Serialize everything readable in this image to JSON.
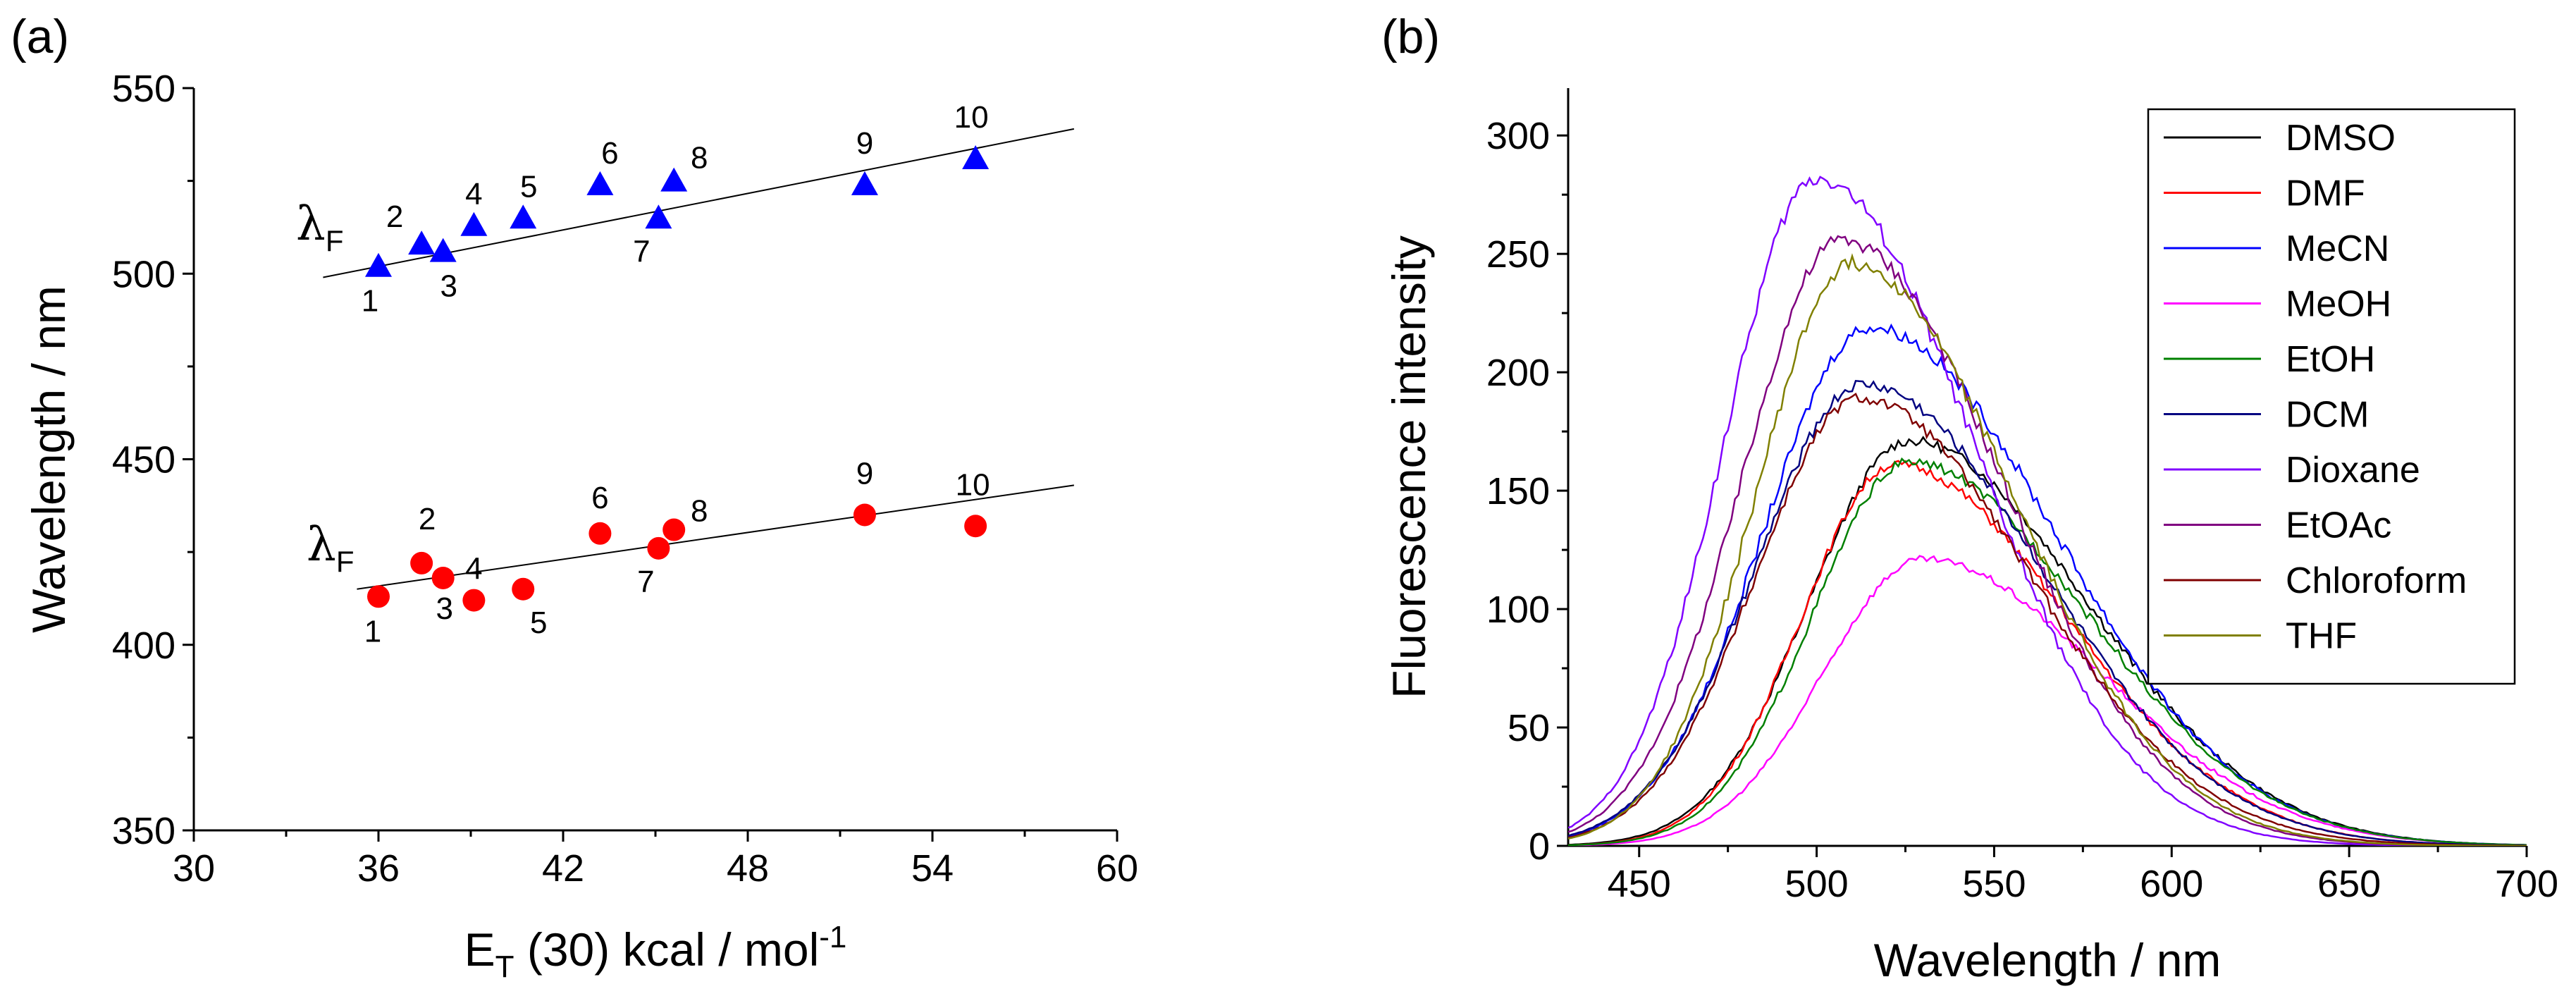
{
  "chart_data": [
    {
      "panel": "(a)",
      "type": "scatter",
      "xlabel": "E",
      "xlabel_sub": "T",
      "xlabel_rest": " (30) kcal / mol",
      "xlabel_sup": "-1",
      "ylabel": "Wavelength / nm",
      "xlim": [
        30,
        60
      ],
      "ylim": [
        350,
        550
      ],
      "xticks": [
        "30",
        "36",
        "42",
        "48",
        "54",
        "60"
      ],
      "yticks": [
        "350",
        "400",
        "450",
        "500",
        "550"
      ],
      "series": [
        {
          "name": "λF (triangles)",
          "label": "λ",
          "label_sub": "F",
          "marker": "triangle",
          "color": "#0000ff",
          "x": [
            36.0,
            37.4,
            38.1,
            39.1,
            40.7,
            43.2,
            45.1,
            45.6,
            51.8,
            55.4
          ],
          "y": [
            502,
            508,
            506,
            513,
            515,
            524,
            515,
            525,
            524,
            531
          ],
          "point_labels": [
            "1",
            "2",
            "3",
            "4",
            "5",
            "6",
            "7",
            "8",
            "9",
            "10"
          ],
          "fit": {
            "x": [
              34.2,
              58.6
            ],
            "y": [
              499,
              539
            ]
          }
        },
        {
          "name": "λF (circles)",
          "label": "λ",
          "label_sub": "F",
          "marker": "circle",
          "color": "#ff0000",
          "x": [
            36.0,
            37.4,
            38.1,
            39.1,
            40.7,
            43.2,
            45.1,
            45.6,
            51.8,
            55.4
          ],
          "y": [
            413,
            422,
            418,
            412,
            415,
            430,
            426,
            431,
            435,
            432
          ],
          "point_labels": [
            "1",
            "2",
            "3",
            "4",
            "5",
            "6",
            "7",
            "8",
            "9",
            "10"
          ],
          "fit": {
            "x": [
              35.3,
              58.6
            ],
            "y": [
              415,
              443
            ]
          }
        }
      ]
    },
    {
      "panel": "(b)",
      "type": "line",
      "xlabel": "Wavelength / nm",
      "ylabel": "Fluorescence intensity",
      "xlim": [
        430,
        700
      ],
      "ylim": [
        0,
        320
      ],
      "xticks": [
        "450",
        "500",
        "550",
        "600",
        "650",
        "700"
      ],
      "yticks": [
        "0",
        "50",
        "100",
        "150",
        "200",
        "250",
        "300"
      ],
      "legend_position": "top-right",
      "series": [
        {
          "name": "DMSO",
          "color": "#000000",
          "peak_x": 526,
          "peak_y": 171,
          "sigma_left": 28,
          "sigma_right": 50
        },
        {
          "name": "DMF",
          "color": "#ff0000",
          "peak_x": 522,
          "peak_y": 161,
          "sigma_left": 26,
          "sigma_right": 48
        },
        {
          "name": "MeCN",
          "color": "#0000ff",
          "peak_x": 515,
          "peak_y": 219,
          "sigma_left": 30,
          "sigma_right": 52
        },
        {
          "name": "MeOH",
          "color": "#ff00ff",
          "peak_x": 530,
          "peak_y": 121,
          "sigma_left": 28,
          "sigma_right": 50
        },
        {
          "name": "EtOH",
          "color": "#008000",
          "peak_x": 526,
          "peak_y": 162,
          "sigma_left": 27,
          "sigma_right": 50
        },
        {
          "name": "DCM",
          "color": "#000080",
          "peak_x": 513,
          "peak_y": 195,
          "sigma_left": 30,
          "sigma_right": 50
        },
        {
          "name": "Dioxane",
          "color": "#8000ff",
          "peak_x": 500,
          "peak_y": 282,
          "sigma_left": 26,
          "sigma_right": 44
        },
        {
          "name": "EtOAc",
          "color": "#800080",
          "peak_x": 507,
          "peak_y": 256,
          "sigma_left": 28,
          "sigma_right": 45
        },
        {
          "name": "Chloroform",
          "color": "#800000",
          "peak_x": 512,
          "peak_y": 189,
          "sigma_left": 29,
          "sigma_right": 48
        },
        {
          "name": "THF",
          "color": "#808000",
          "peak_x": 510,
          "peak_y": 246,
          "sigma_left": 27,
          "sigma_right": 45
        }
      ]
    }
  ]
}
